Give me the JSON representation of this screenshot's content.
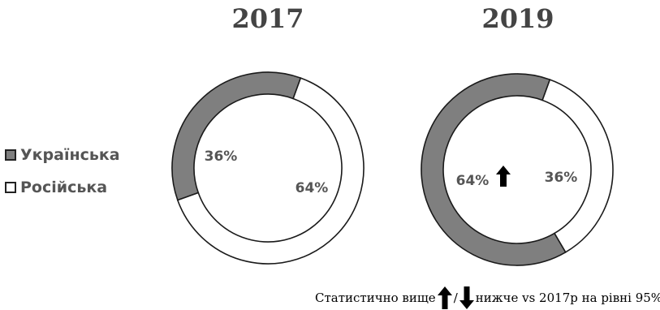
{
  "chart_data": [
    {
      "type": "pie",
      "title": "2017",
      "categories": [
        "Українська",
        "Російська"
      ],
      "values": [
        36,
        64
      ],
      "labels": [
        "36%",
        "64%"
      ],
      "significance": [
        null,
        null
      ]
    },
    {
      "type": "pie",
      "title": "2019",
      "categories": [
        "Українська",
        "Російська"
      ],
      "values": [
        64,
        36
      ],
      "labels": [
        "64%",
        "36%"
      ],
      "significance": [
        "up",
        null
      ]
    }
  ],
  "legend": {
    "placement": "left",
    "items": [
      {
        "label": "Українська",
        "color": "#7f7f7f"
      },
      {
        "label": "Російська",
        "color": "#ffffff"
      }
    ]
  },
  "colors": {
    "ukrainian": "#7f7f7f",
    "russian": "#ffffff",
    "stroke": "#1a1a1a"
  },
  "footnote": {
    "prefix": "Статистично вище",
    "separator": "/",
    "suffix": "нижче vs 2017р на рівні 95%",
    "up_icon": "arrow-up-icon",
    "down_icon": "arrow-down-icon"
  }
}
